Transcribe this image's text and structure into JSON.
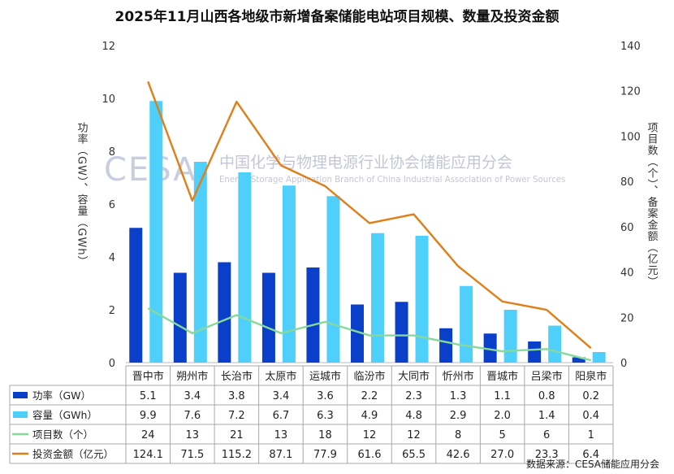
{
  "title": "2025年11月山西各地级市新增备案储能电站项目规模、数量及投资金额",
  "source": "数据来源：CESA储能应用分会",
  "watermark": {
    "logo": "CESA",
    "cn": "中国化学与物理电源行业协会储能应用分会",
    "en": "Energy Storage Application Branch of China Industrial Association of Power Sources"
  },
  "colors": {
    "power": "#0a3fc9",
    "capacity": "#4fd0fb",
    "projects": "#86d99a",
    "investment": "#e07e17"
  },
  "chart_data": {
    "type": "bar+line",
    "title": "2025年11月山西各地级市新增备案储能电站项目规模、数量及投资金额",
    "categories": [
      "晋中市",
      "朔州市",
      "长治市",
      "太原市",
      "运城市",
      "临汾市",
      "大同市",
      "忻州市",
      "晋城市",
      "吕梁市",
      "阳泉市"
    ],
    "y_left": {
      "label": "功率（GW）、容量（GWh）",
      "ylim": [
        0,
        12
      ],
      "ticks": [
        0,
        2,
        4,
        6,
        8,
        10,
        12
      ]
    },
    "y_right": {
      "label": "项目数（个）、备案金额（亿元）",
      "ylim": [
        0,
        140
      ],
      "ticks": [
        0,
        20,
        40,
        60,
        80,
        100,
        120,
        140
      ]
    },
    "series": [
      {
        "name": "功率（GW）",
        "kind": "bar",
        "axis": "left",
        "values": [
          5.1,
          3.4,
          3.8,
          3.4,
          3.6,
          2.2,
          2.3,
          1.3,
          1.1,
          0.8,
          0.2
        ],
        "display": [
          "5.1",
          "3.4",
          "3.8",
          "3.4",
          "3.6",
          "2.2",
          "2.3",
          "1.3",
          "1.1",
          "0.8",
          "0.2"
        ]
      },
      {
        "name": "容量（GWh）",
        "kind": "bar",
        "axis": "left",
        "values": [
          9.9,
          7.6,
          7.2,
          6.7,
          6.3,
          4.9,
          4.8,
          2.9,
          2.0,
          1.4,
          0.4
        ],
        "display": [
          "9.9",
          "7.6",
          "7.2",
          "6.7",
          "6.3",
          "4.9",
          "4.8",
          "2.9",
          "2.0",
          "1.4",
          "0.4"
        ]
      },
      {
        "name": "项目数（个）",
        "kind": "line",
        "axis": "right",
        "values": [
          24,
          13,
          21,
          13,
          18,
          12,
          12,
          8,
          5,
          6,
          1
        ],
        "display": [
          "24",
          "13",
          "21",
          "13",
          "18",
          "12",
          "12",
          "8",
          "5",
          "6",
          "1"
        ]
      },
      {
        "name": "投资金额（亿元）",
        "kind": "line",
        "axis": "right",
        "values": [
          124.1,
          71.5,
          115.2,
          87.1,
          77.9,
          61.6,
          65.5,
          42.6,
          27.0,
          23.3,
          6.4
        ],
        "display": [
          "124.1",
          "71.5",
          "115.2",
          "87.1",
          "77.9",
          "61.6",
          "65.5",
          "42.6",
          "27.0",
          "23.3",
          "6.4"
        ]
      }
    ]
  }
}
